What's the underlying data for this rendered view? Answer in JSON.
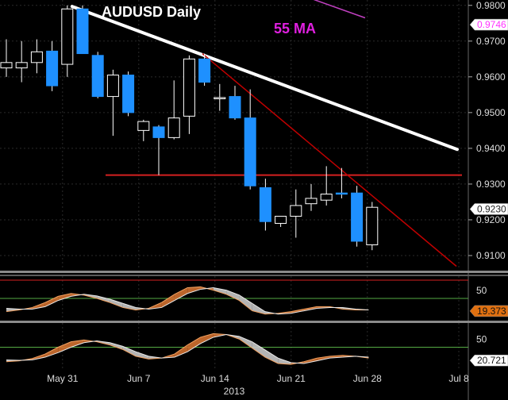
{
  "chart_data": {
    "type": "candlestick",
    "title": "AUDUSD Daily",
    "ma_label": "55 MA",
    "price_axis": {
      "ticks": [
        "0.9800",
        "0.9700",
        "0.9600",
        "0.9500",
        "0.9400",
        "0.9300",
        "0.9200",
        "0.9100"
      ],
      "ylim": [
        0.906,
        0.9815
      ],
      "tags": [
        {
          "value": 0.9746,
          "label": "0.9746",
          "color": "#ff33ff"
        },
        {
          "value": 0.923,
          "label": "0.9230",
          "color": "#ffffff"
        }
      ]
    },
    "x_axis": {
      "ticks": [
        "May 31",
        "Jun 7",
        "Jun 14",
        "Jun 21",
        "Jun 28",
        "Jul 8"
      ],
      "year": "2013"
    },
    "candles": [
      {
        "o": 0.9625,
        "h": 0.9705,
        "l": 0.96,
        "c": 0.964
      },
      {
        "o": 0.9625,
        "h": 0.97,
        "l": 0.9585,
        "c": 0.964
      },
      {
        "o": 0.964,
        "h": 0.9705,
        "l": 0.961,
        "c": 0.967
      },
      {
        "o": 0.9672,
        "h": 0.97,
        "l": 0.956,
        "c": 0.9575
      },
      {
        "o": 0.9635,
        "h": 0.98,
        "l": 0.96,
        "c": 0.979
      },
      {
        "o": 0.979,
        "h": 0.98,
        "l": 0.967,
        "c": 0.9665
      },
      {
        "o": 0.966,
        "h": 0.967,
        "l": 0.954,
        "c": 0.9545
      },
      {
        "o": 0.9545,
        "h": 0.962,
        "l": 0.9435,
        "c": 0.9605
      },
      {
        "o": 0.9605,
        "h": 0.9615,
        "l": 0.949,
        "c": 0.95
      },
      {
        "o": 0.945,
        "h": 0.948,
        "l": 0.942,
        "c": 0.9475
      },
      {
        "o": 0.946,
        "h": 0.9465,
        "l": 0.9325,
        "c": 0.943
      },
      {
        "o": 0.943,
        "h": 0.959,
        "l": 0.9425,
        "c": 0.9485
      },
      {
        "o": 0.949,
        "h": 0.966,
        "l": 0.944,
        "c": 0.965
      },
      {
        "o": 0.965,
        "h": 0.9665,
        "l": 0.9575,
        "c": 0.9585
      },
      {
        "o": 0.954,
        "h": 0.958,
        "l": 0.9505,
        "c": 0.9542
      },
      {
        "o": 0.9545,
        "h": 0.9575,
        "l": 0.948,
        "c": 0.9485
      },
      {
        "o": 0.9485,
        "h": 0.9565,
        "l": 0.9285,
        "c": 0.9295
      },
      {
        "o": 0.929,
        "h": 0.9315,
        "l": 0.917,
        "c": 0.9195
      },
      {
        "o": 0.919,
        "h": 0.921,
        "l": 0.918,
        "c": 0.921
      },
      {
        "o": 0.921,
        "h": 0.9285,
        "l": 0.915,
        "c": 0.924
      },
      {
        "o": 0.9245,
        "h": 0.93,
        "l": 0.9225,
        "c": 0.926
      },
      {
        "o": 0.9255,
        "h": 0.935,
        "l": 0.924,
        "c": 0.9272
      },
      {
        "o": 0.9275,
        "h": 0.9345,
        "l": 0.926,
        "c": 0.9273
      },
      {
        "o": 0.9275,
        "h": 0.9295,
        "l": 0.9125,
        "c": 0.914
      },
      {
        "o": 0.913,
        "h": 0.925,
        "l": 0.9115,
        "c": 0.9235
      }
    ],
    "colors": {
      "bull_fill": "#000000",
      "bull_stroke": "#ffffff",
      "bear_fill": "#1e90ff",
      "wick": "#ffffff",
      "downtrend_line": "#ffffff",
      "resistance_line": "#d42020",
      "steep_trend_line": "#c00000",
      "ma_line": "#c040c0",
      "title": "#ffffff",
      "ma_text": "#e020e0",
      "osc_fill_a": "#d07030",
      "osc_fill_b": "#c8c8c8",
      "osc_level": "#55aa44",
      "osc_top_level": "#d42020",
      "tag_orange": "#e07010",
      "tag_white": "#ffffff"
    },
    "oscillators": [
      {
        "name": "stochastic-1",
        "tick": "50",
        "level": 50,
        "upper_level": 80,
        "tag": "19.373",
        "k": [
          18,
          22,
          28,
          40,
          55,
          62,
          58,
          50,
          40,
          28,
          22,
          26,
          40,
          60,
          76,
          78,
          70,
          60,
          45,
          20,
          12,
          14,
          18,
          24,
          30,
          30,
          24,
          22,
          22
        ],
        "d": [
          26,
          24,
          24,
          30,
          45,
          55,
          60,
          56,
          48,
          38,
          28,
          24,
          28,
          45,
          62,
          72,
          76,
          70,
          58,
          38,
          18,
          12,
          14,
          20,
          26,
          28,
          28,
          24,
          22
        ]
      },
      {
        "name": "stochastic-2",
        "tick": "50",
        "level": 50,
        "tag": "20.721",
        "k": [
          18,
          20,
          25,
          35,
          50,
          62,
          66,
          62,
          55,
          45,
          30,
          24,
          26,
          35,
          55,
          72,
          80,
          78,
          68,
          48,
          28,
          14,
          12,
          18,
          26,
          30,
          32,
          30,
          26
        ],
        "d": [
          22,
          21,
          22,
          28,
          38,
          50,
          60,
          64,
          60,
          52,
          40,
          30,
          26,
          28,
          40,
          58,
          72,
          78,
          74,
          62,
          44,
          26,
          16,
          14,
          20,
          26,
          28,
          30,
          28
        ]
      }
    ]
  }
}
